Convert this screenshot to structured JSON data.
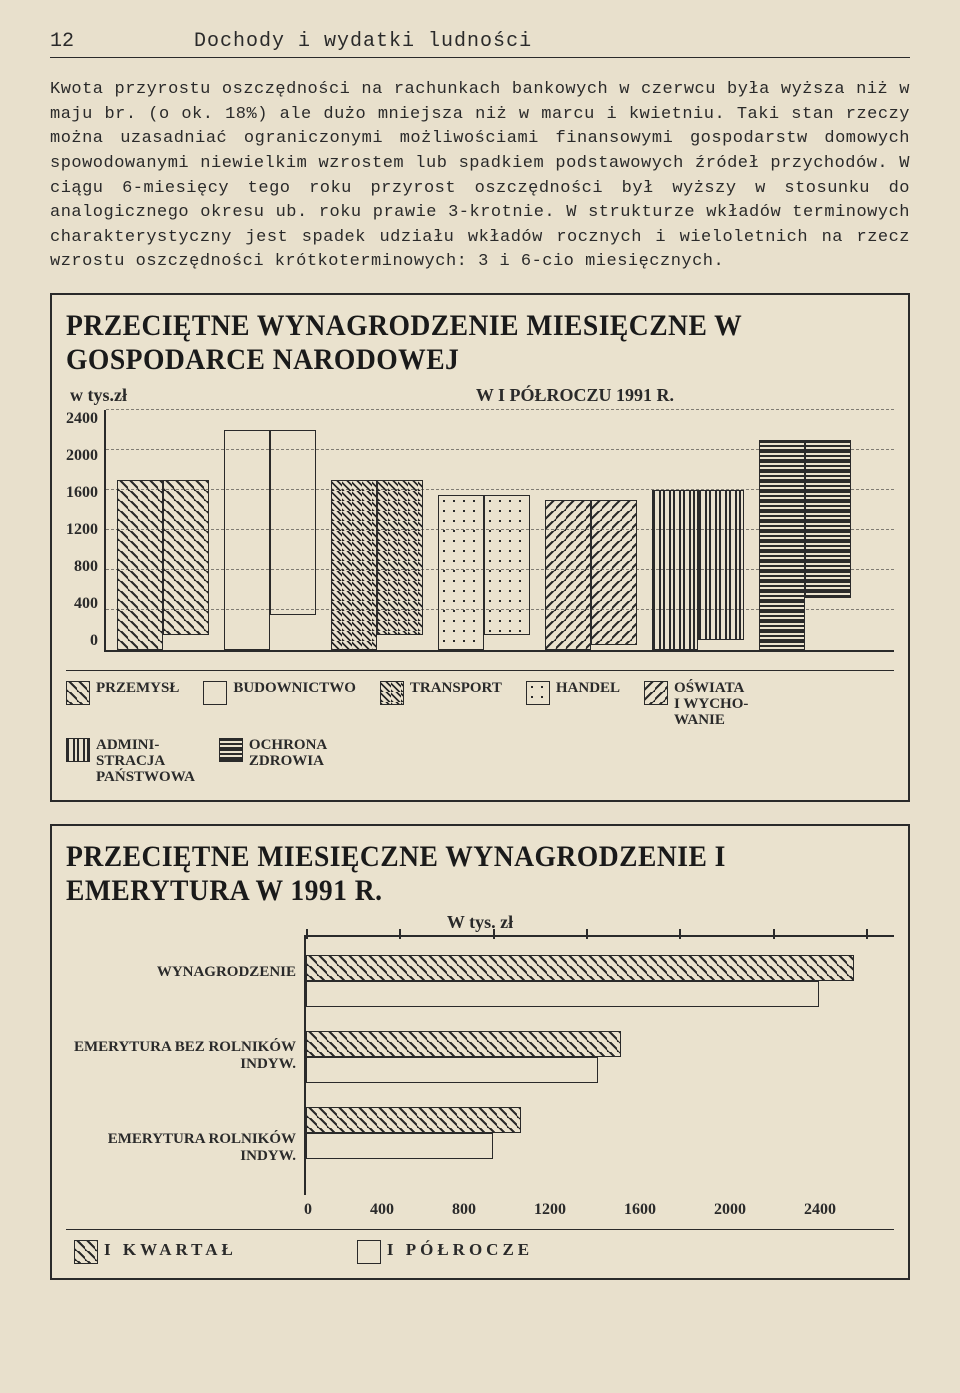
{
  "page_number": "12",
  "header_title": "Dochody i wydatki ludności",
  "body_paragraph": "Kwota przyrostu oszczędności na rachunkach bankowych w czerwcu była wyższa niż w maju br. (o ok. 18%) ale dużo mniejsza niż w marcu i kwietniu. Taki stan rzeczy można uzasadniać ograniczonymi możliwościami finansowymi gospodarstw domowych spowodowanymi niewielkim wzrostem lub spadkiem podstawowych źródeł przychodów. W ciągu 6-miesięcy tego roku przyrost oszczędności był wyższy w stosunku do analogicznego okresu ub. roku prawie 3-krotnie. W strukturze wkładów terminowych charakterystyczny jest spadek udziału wkładów rocznych i wieloletnich na rzecz wzrostu oszczędności krótkoterminowych: 3 i 6-cio miesięcznych.",
  "chart1": {
    "title": "PRZECIĘTNE WYNAGRODZENIE MIESIĘCZNE W GOSPODARCE NARODOWEJ",
    "y_unit_label": "w tys.zł",
    "subtitle": "W I PÓŁROCZU 1991 R.",
    "type": "bar",
    "y_ticks": [
      "2400",
      "2000",
      "1600",
      "1200",
      "800",
      "400",
      "0"
    ],
    "ymax": 2400,
    "categories": [
      "PRZEMYSŁ",
      "BUDOWNICTWO",
      "TRANSPORT",
      "HANDEL",
      "OŚWIATA I WYCHOWANIE",
      "ADMINISTRACJA PAŃSTWOWA",
      "OCHRONA ZDROWIA"
    ],
    "values_q1": [
      1700,
      2200,
      1700,
      1550,
      1500,
      1600,
      2100
    ],
    "values_h1": [
      1550,
      1850,
      1550,
      1400,
      1450,
      1500,
      1580
    ],
    "fills": [
      "diag-lr",
      "none",
      "diag-lr-dense",
      "dots",
      "diag-rl",
      "vlines",
      "hlines-dense"
    ],
    "bar_border": "#2a2a2a",
    "bg": "#eae2ce",
    "legend_items": [
      {
        "label": "PRZEMYSŁ",
        "fill": "diag-lr"
      },
      {
        "label": "BUDOWNICTWO",
        "fill": "none"
      },
      {
        "label": "TRANSPORT",
        "fill": "diag-lr-dense"
      },
      {
        "label": "HANDEL",
        "fill": "dots"
      },
      {
        "label": "OŚWIATA\nI WYCHO-\nWANIE",
        "fill": "diag-rl"
      },
      {
        "label": "ADMINI-\nSTRACJA\nPAŃSTWOWA",
        "fill": "vlines"
      },
      {
        "label": "OCHRONA\nZDROWIA",
        "fill": "hlines-dense"
      }
    ]
  },
  "chart2": {
    "title": "PRZECIĘTNE MIESIĘCZNE WYNAGRODZENIE I EMERYTURA W 1991 R.",
    "subtitle": "W tys. zł",
    "type": "bar-horizontal",
    "xmax": 2400,
    "x_ticks": [
      "0",
      "400",
      "800",
      "1200",
      "1600",
      "2000",
      "2400"
    ],
    "row_labels": [
      "WYNAGRODZENIE",
      "EMERYTURA BEZ ROLNIKÓW INDYW.",
      "EMERYTURA ROLNIKÓW INDYW."
    ],
    "values_q1": [
      2350,
      1350,
      920
    ],
    "values_h1": [
      2200,
      1250,
      800
    ],
    "fill_q1": "diag-lr",
    "fill_h1": "none",
    "legend": [
      {
        "label": "I KWARTAŁ",
        "fill": "diag-lr"
      },
      {
        "label": "I PÓŁROCZE",
        "fill": "none"
      }
    ]
  },
  "patterns": {
    "diag-lr": "repeating-linear-gradient(45deg,#2a2a2a 0 2px,transparent 2px 8px)",
    "diag-lr-dense": "repeating-linear-gradient(45deg,#2a2a2a 0 2px,transparent 2px 5px)",
    "diag-rl": "repeating-linear-gradient(-45deg,#2a2a2a 0 2px,transparent 2px 8px)",
    "dots": "radial-gradient(#2a2a2a 1.2px, transparent 1.2px)",
    "vlines": "repeating-linear-gradient(90deg,#2a2a2a 0 2px,transparent 2px 6px)",
    "hlines-dense": "repeating-linear-gradient(0deg,#2a2a2a 0 2px,transparent 2px 4px)",
    "none": "none"
  }
}
